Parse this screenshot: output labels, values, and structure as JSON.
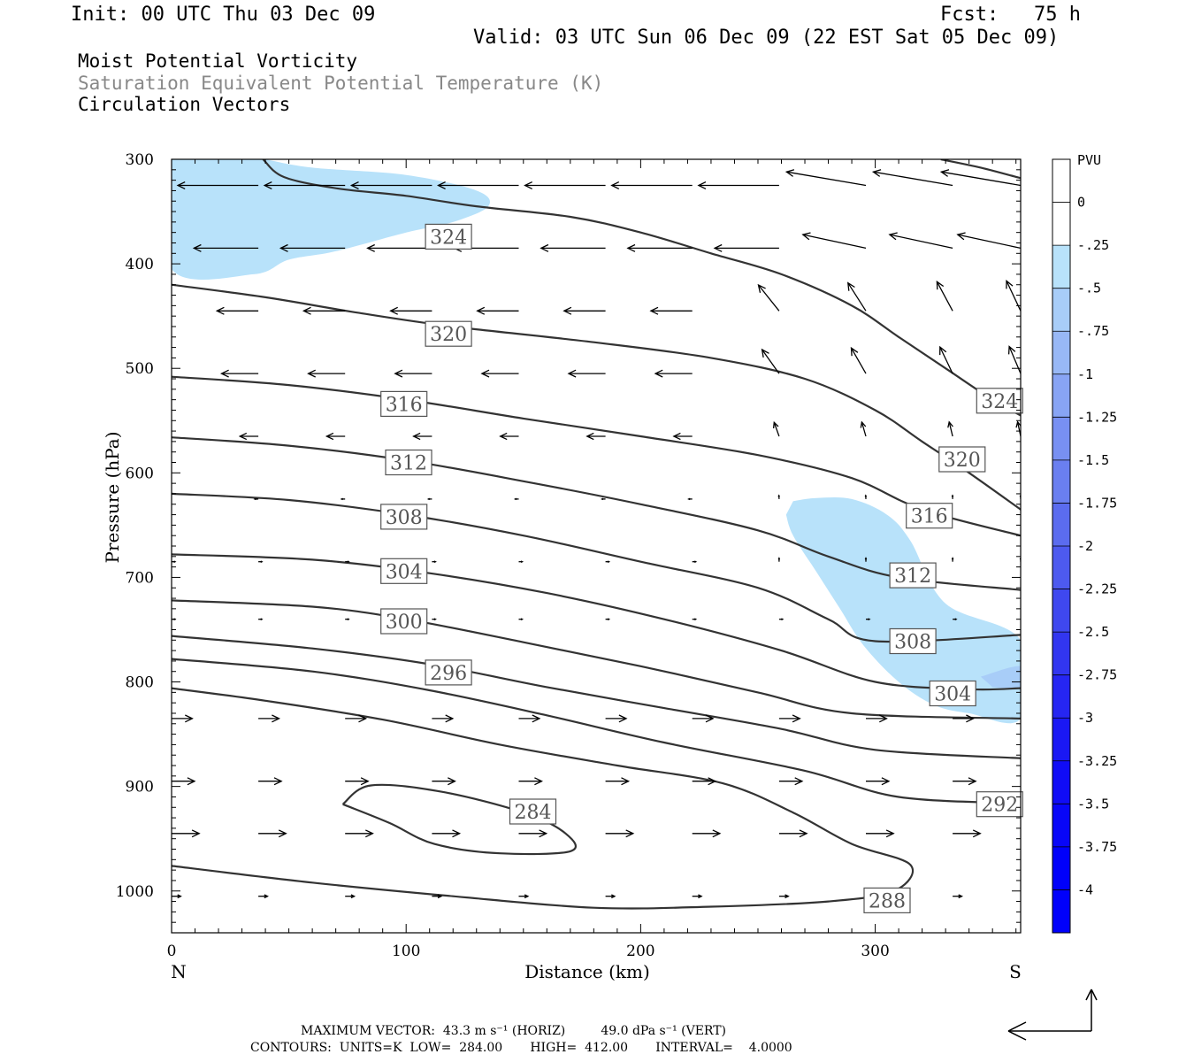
{
  "header": {
    "init": "Init: 00 UTC Thu 03 Dec 09",
    "fcst": "Fcst:   75 h",
    "valid": "Valid: 03 UTC Sun 06 Dec 09 (22 EST Sat 05 Dec 09)",
    "field1": "Moist Potential Vorticity",
    "field2": "Saturation Equivalent Potential Temperature (K)",
    "field3": "Circulation Vectors"
  },
  "footer": {
    "line1": "MAXIMUM VECTOR:  43.3 m s⁻¹ (HORIZ)         49.0 dPa s⁻¹ (VERT)",
    "line2": "CONTOURS:  UNITS=K  LOW=  284.00       HIGH=  412.00       INTERVAL=    4.0000"
  },
  "colors": {
    "contour": "#333333",
    "shade_025": "#b8e2fa",
    "shade_050": "#a8cdf8",
    "frame": "#000000"
  },
  "chart_data": {
    "type": "cross-section",
    "x": {
      "label": "Distance (km)",
      "range": [
        0,
        362
      ],
      "ticks": [
        0,
        100,
        200,
        300
      ],
      "end_labels": {
        "left": "N",
        "right": "S"
      }
    },
    "y": {
      "label": "Pressure (hPa)",
      "range": [
        300,
        1040
      ],
      "inverted": true,
      "ticks": [
        300,
        400,
        500,
        600,
        700,
        800,
        900,
        1000
      ]
    },
    "colorbar": {
      "unit": "PVU",
      "levels": [
        "0",
        "-.25",
        "-.5",
        "-.75",
        "-1",
        "-1.25",
        "-1.5",
        "-1.75",
        "-2",
        "-2.25",
        "-2.5",
        "-2.75",
        "-3",
        "-3.25",
        "-3.5",
        "-3.75",
        "-4"
      ],
      "colors": [
        "#ffffff",
        "#ffffff",
        "#b8e2fa",
        "#a8cdf8",
        "#98b8f6",
        "#88a4f4",
        "#7890f2",
        "#6a7ff0",
        "#5b6cef",
        "#4d5aef",
        "#3f48ef",
        "#3236f0",
        "#2626f2",
        "#1a18f4",
        "#100cf6",
        "#0806f8",
        "#0000fa",
        "#0000fb"
      ]
    },
    "contour_labels": [
      {
        "text": "324",
        "x": 109,
        "y": 374
      },
      {
        "text": "320",
        "x": 109,
        "y": 467
      },
      {
        "text": "316",
        "x": 90,
        "y": 534
      },
      {
        "text": "312",
        "x": 92,
        "y": 590
      },
      {
        "text": "308",
        "x": 90,
        "y": 642
      },
      {
        "text": "304",
        "x": 90,
        "y": 694
      },
      {
        "text": "300",
        "x": 90,
        "y": 742
      },
      {
        "text": "296",
        "x": 109,
        "y": 791
      },
      {
        "text": "284",
        "x": 145,
        "y": 924
      },
      {
        "text": "324",
        "x": 344,
        "y": 531
      },
      {
        "text": "320",
        "x": 328,
        "y": 587
      },
      {
        "text": "316",
        "x": 314,
        "y": 641
      },
      {
        "text": "312",
        "x": 307,
        "y": 698
      },
      {
        "text": "308",
        "x": 307,
        "y": 761
      },
      {
        "text": "304",
        "x": 324,
        "y": 811
      },
      {
        "text": "292",
        "x": 344,
        "y": 917
      },
      {
        "text": "288",
        "x": 296,
        "y": 1009
      }
    ],
    "contours": [
      {
        "level": 324,
        "points": [
          [
            39,
            300
          ],
          [
            48,
            317
          ],
          [
            71,
            328
          ],
          [
            100,
            335
          ],
          [
            130,
            345
          ],
          [
            170,
            355
          ],
          [
            200,
            370
          ],
          [
            230,
            390
          ],
          [
            260,
            410
          ],
          [
            290,
            440
          ],
          [
            310,
            470
          ],
          [
            330,
            500
          ],
          [
            350,
            530
          ],
          [
            362,
            545
          ]
        ]
      },
      {
        "level": 324,
        "points": [
          [
            328,
            300
          ],
          [
            345,
            308
          ],
          [
            362,
            318
          ]
        ]
      },
      {
        "level": 320,
        "points": [
          [
            0,
            420
          ],
          [
            40,
            432
          ],
          [
            80,
            447
          ],
          [
            120,
            460
          ],
          [
            180,
            475
          ],
          [
            230,
            490
          ],
          [
            270,
            510
          ],
          [
            300,
            540
          ],
          [
            320,
            570
          ],
          [
            340,
            600
          ],
          [
            362,
            635
          ]
        ]
      },
      {
        "level": 316,
        "points": [
          [
            0,
            508
          ],
          [
            50,
            516
          ],
          [
            100,
            530
          ],
          [
            150,
            548
          ],
          [
            200,
            565
          ],
          [
            250,
            583
          ],
          [
            290,
            605
          ],
          [
            320,
            635
          ],
          [
            362,
            660
          ]
        ]
      },
      {
        "level": 312,
        "points": [
          [
            0,
            566
          ],
          [
            50,
            574
          ],
          [
            100,
            588
          ],
          [
            150,
            608
          ],
          [
            200,
            630
          ],
          [
            250,
            655
          ],
          [
            280,
            680
          ],
          [
            310,
            700
          ],
          [
            362,
            712
          ]
        ]
      },
      {
        "level": 308,
        "points": [
          [
            0,
            620
          ],
          [
            50,
            626
          ],
          [
            100,
            640
          ],
          [
            150,
            660
          ],
          [
            200,
            685
          ],
          [
            250,
            710
          ],
          [
            280,
            740
          ],
          [
            300,
            761
          ],
          [
            362,
            755
          ]
        ]
      },
      {
        "level": 304,
        "points": [
          [
            0,
            678
          ],
          [
            60,
            683
          ],
          [
            110,
            696
          ],
          [
            160,
            715
          ],
          [
            210,
            740
          ],
          [
            260,
            770
          ],
          [
            300,
            800
          ],
          [
            340,
            807
          ],
          [
            362,
            806
          ]
        ]
      },
      {
        "level": 300,
        "points": [
          [
            0,
            722
          ],
          [
            60,
            728
          ],
          [
            100,
            740
          ],
          [
            150,
            762
          ],
          [
            200,
            785
          ],
          [
            250,
            810
          ],
          [
            290,
            830
          ],
          [
            362,
            835
          ]
        ]
      },
      {
        "level": 296,
        "points": [
          [
            0,
            756
          ],
          [
            60,
            768
          ],
          [
            110,
            783
          ],
          [
            160,
            805
          ],
          [
            210,
            825
          ],
          [
            260,
            845
          ],
          [
            300,
            865
          ],
          [
            362,
            873
          ]
        ]
      },
      {
        "level": 292,
        "points": [
          [
            0,
            778
          ],
          [
            60,
            790
          ],
          [
            110,
            808
          ],
          [
            160,
            832
          ],
          [
            210,
            858
          ],
          [
            270,
            885
          ],
          [
            310,
            910
          ],
          [
            362,
            916
          ]
        ]
      },
      {
        "level": 288,
        "points": [
          [
            0,
            806
          ],
          [
            40,
            818
          ],
          [
            90,
            836
          ],
          [
            140,
            860
          ],
          [
            190,
            880
          ],
          [
            235,
            897
          ],
          [
            265,
            925
          ],
          [
            290,
            955
          ],
          [
            315,
            975
          ],
          [
            308,
            1000
          ],
          [
            280,
            1010
          ],
          [
            230,
            1015
          ],
          [
            180,
            1016
          ],
          [
            120,
            1005
          ],
          [
            60,
            992
          ],
          [
            0,
            976
          ]
        ]
      },
      {
        "level": 284,
        "points": [
          [
            73,
            917
          ],
          [
            85,
            899
          ],
          [
            115,
            905
          ],
          [
            150,
            925
          ],
          [
            168,
            945
          ],
          [
            170,
            962
          ],
          [
            140,
            964
          ],
          [
            112,
            955
          ],
          [
            93,
            935
          ],
          [
            73,
            917
          ]
        ]
      }
    ],
    "shading": [
      {
        "level": "-.25",
        "points": [
          [
            0,
            300
          ],
          [
            0,
            405
          ],
          [
            35,
            410
          ],
          [
            50,
            396
          ],
          [
            70,
            388
          ],
          [
            100,
            370
          ],
          [
            120,
            360
          ],
          [
            135,
            345
          ],
          [
            130,
            330
          ],
          [
            100,
            315
          ],
          [
            60,
            308
          ],
          [
            40,
            300
          ]
        ]
      },
      {
        "level": "-.25",
        "points": [
          [
            265,
            627
          ],
          [
            275,
            624
          ],
          [
            290,
            625
          ],
          [
            305,
            640
          ],
          [
            315,
            665
          ],
          [
            330,
            725
          ],
          [
            362,
            760
          ],
          [
            362,
            835
          ],
          [
            340,
            830
          ],
          [
            325,
            822
          ],
          [
            310,
            800
          ],
          [
            295,
            765
          ],
          [
            285,
            730
          ],
          [
            275,
            695
          ],
          [
            265,
            660
          ],
          [
            262,
            640
          ]
        ]
      },
      {
        "level": "-.5",
        "points": [
          [
            345,
            795
          ],
          [
            362,
            785
          ],
          [
            362,
            805
          ],
          [
            350,
            805
          ]
        ]
      }
    ],
    "vectors": {
      "columns_x": [
        0,
        37,
        74,
        111,
        148,
        185,
        222,
        259,
        296,
        333,
        362
      ],
      "levels_hpa": [
        325,
        385,
        445,
        505,
        565,
        625,
        685,
        740,
        835,
        895,
        945,
        1005
      ],
      "u_by_level": [
        -35,
        -28,
        -18,
        -16,
        -8,
        -1,
        0,
        0,
        9,
        10,
        12,
        4
      ],
      "v_east_boost": [
        0,
        0,
        0,
        0,
        0,
        0,
        0,
        0,
        0,
        0,
        0,
        0
      ]
    }
  }
}
